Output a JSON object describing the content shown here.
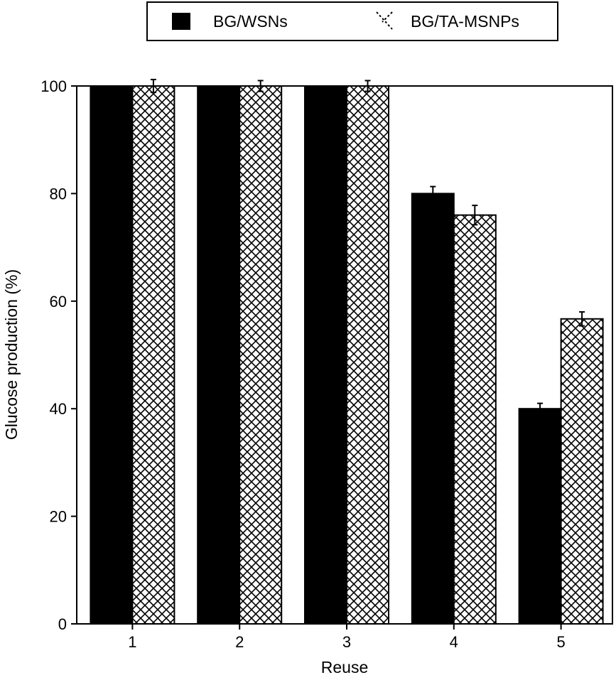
{
  "chart_data": {
    "type": "bar",
    "title": "",
    "xlabel": "Reuse",
    "ylabel": "Glucose production (%)",
    "ylim": [
      0,
      100
    ],
    "yticks": [
      0,
      20,
      40,
      60,
      80,
      100
    ],
    "categories": [
      "1",
      "2",
      "3",
      "4",
      "5"
    ],
    "legend_position": "top",
    "grid": false,
    "series": [
      {
        "name": "BG/WSNs",
        "pattern": "solid",
        "color": "#000000",
        "values": [
          100,
          100,
          100,
          80,
          40
        ],
        "errors": [
          0,
          0,
          0,
          1.3,
          1.0
        ]
      },
      {
        "name": "BG/TA-MSNPs",
        "pattern": "crosshatch",
        "color": "#000000",
        "values": [
          100,
          100,
          100,
          76,
          56.7
        ],
        "errors": [
          1.2,
          1.0,
          1.0,
          1.8,
          1.3
        ]
      }
    ]
  }
}
